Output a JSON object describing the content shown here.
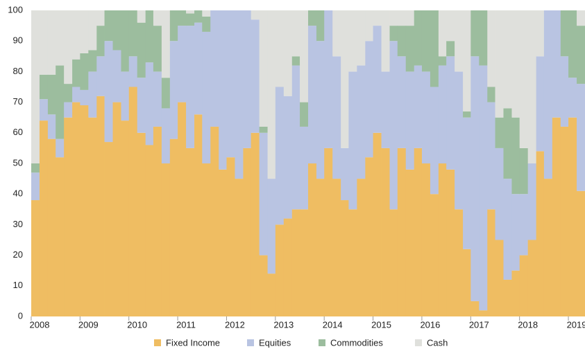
{
  "chart_data": {
    "type": "stacked_bar",
    "x": [
      2007.83,
      2008,
      2008.17,
      2008.33,
      2008.5,
      2008.67,
      2008.83,
      2009,
      2009.17,
      2009.33,
      2009.5,
      2009.67,
      2009.83,
      2010,
      2010.17,
      2010.33,
      2010.5,
      2010.67,
      2010.83,
      2011,
      2011.17,
      2011.33,
      2011.5,
      2011.67,
      2011.83,
      2012,
      2012.17,
      2012.33,
      2012.5,
      2012.67,
      2012.83,
      2013,
      2013.17,
      2013.33,
      2013.5,
      2013.67,
      2013.83,
      2014,
      2014.17,
      2014.33,
      2014.5,
      2014.67,
      2014.83,
      2015,
      2015.17,
      2015.33,
      2015.5,
      2015.67,
      2015.83,
      2016,
      2016.17,
      2016.33,
      2016.5,
      2016.67,
      2016.83,
      2017,
      2017.17,
      2017.33,
      2017.5,
      2017.67,
      2017.83,
      2018,
      2018.17,
      2018.33,
      2018.5,
      2018.67,
      2018.83,
      2019
    ],
    "series": [
      {
        "name": "Fixed Income",
        "color": "#efbd62",
        "values": [
          38,
          64,
          58,
          52,
          65,
          70,
          69,
          65,
          72,
          57,
          70,
          64,
          75,
          60,
          56,
          62,
          50,
          58,
          70,
          55,
          66,
          50,
          62,
          48,
          52,
          45,
          55,
          60,
          20,
          14,
          30,
          32,
          35,
          35,
          50,
          45,
          55,
          45,
          38,
          35,
          45,
          52,
          60,
          55,
          35,
          55,
          48,
          55,
          50,
          40,
          50,
          48,
          35,
          22,
          5,
          2,
          35,
          25,
          12,
          15,
          20,
          25,
          54,
          45,
          65,
          62,
          65,
          41
        ]
      },
      {
        "name": "Equities",
        "color": "#b9c4e2",
        "values": [
          9,
          7,
          8,
          6,
          5,
          5,
          5,
          15,
          13,
          33,
          17,
          16,
          10,
          18,
          27,
          18,
          18,
          32,
          25,
          40,
          30,
          43,
          38,
          52,
          48,
          55,
          45,
          37,
          40,
          31,
          45,
          40,
          47,
          27,
          45,
          45,
          45,
          40,
          17,
          45,
          37,
          38,
          35,
          25,
          55,
          30,
          32,
          27,
          30,
          35,
          32,
          37,
          45,
          43,
          80,
          80,
          35,
          30,
          33,
          25,
          20,
          25,
          31,
          55,
          35,
          23,
          13,
          35
        ]
      },
      {
        "name": "Commodities",
        "color": "#9cbd9e",
        "values": [
          3,
          8,
          13,
          24,
          6,
          9,
          12,
          7,
          10,
          10,
          13,
          20,
          15,
          18,
          17,
          15,
          10,
          10,
          5,
          4,
          4,
          5,
          0,
          0,
          0,
          0,
          0,
          0,
          2,
          0,
          0,
          0,
          3,
          8,
          5,
          10,
          0,
          0,
          0,
          0,
          0,
          0,
          0,
          0,
          5,
          10,
          15,
          18,
          20,
          25,
          3,
          5,
          0,
          2,
          15,
          18,
          5,
          10,
          23,
          25,
          15,
          0,
          0,
          0,
          0,
          15,
          22,
          19
        ]
      },
      {
        "name": "Cash",
        "color": "#dfe0dc",
        "values": [
          50,
          21,
          21,
          18,
          24,
          16,
          14,
          13,
          5,
          0,
          0,
          0,
          0,
          4,
          0,
          5,
          22,
          0,
          0,
          1,
          0,
          2,
          0,
          0,
          0,
          0,
          0,
          3,
          38,
          55,
          25,
          28,
          15,
          30,
          0,
          0,
          0,
          15,
          45,
          20,
          18,
          10,
          5,
          20,
          5,
          5,
          5,
          0,
          0,
          0,
          15,
          10,
          20,
          33,
          0,
          0,
          25,
          35,
          32,
          35,
          45,
          50,
          15,
          0,
          0,
          0,
          0,
          5
        ]
      }
    ],
    "xlim": [
      2007.83,
      2019.17
    ],
    "xticks": [
      2008,
      2009,
      2010,
      2011,
      2012,
      2013,
      2014,
      2015,
      2016,
      2017,
      2018,
      2019
    ],
    "ylim": [
      0,
      100
    ],
    "yticks": [
      0,
      10,
      20,
      30,
      40,
      50,
      60,
      70,
      80,
      90,
      100
    ]
  }
}
